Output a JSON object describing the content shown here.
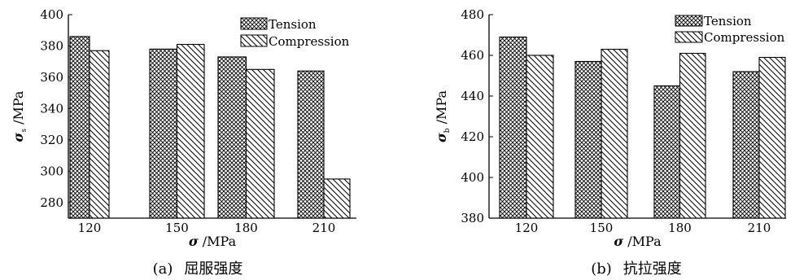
{
  "colors": {
    "axis": "#000000",
    "bar_stroke": "#000000",
    "hatch": "#000000",
    "background": "#ffffff"
  },
  "chart_data": [
    {
      "type": "bar",
      "panel": "a",
      "caption_label": "(a)",
      "caption_text": "屈服强度",
      "ylabel_symbol": "σ",
      "ylabel_sub": "s",
      "ylabel_unit": " /MPa",
      "xlabel_symbol": "σ",
      "xlabel_unit": " /MPa",
      "categories": [
        "120",
        "150",
        "180",
        "210"
      ],
      "ylim": [
        270,
        400
      ],
      "yticks": [
        280,
        300,
        320,
        340,
        360,
        380,
        400
      ],
      "legend_position": "top-right",
      "series": [
        {
          "name": "Tension",
          "pattern": "crosshatch",
          "values": [
            386,
            378,
            373,
            364
          ]
        },
        {
          "name": "Compression",
          "pattern": "diagonal",
          "values": [
            377,
            381,
            365,
            295
          ]
        }
      ]
    },
    {
      "type": "bar",
      "panel": "b",
      "caption_label": "(b)",
      "caption_text": "抗拉强度",
      "ylabel_symbol": "σ",
      "ylabel_sub": "b",
      "ylabel_unit": " /MPa",
      "xlabel_symbol": "σ",
      "xlabel_unit": " /MPa",
      "categories": [
        "120",
        "150",
        "180",
        "210"
      ],
      "ylim": [
        380,
        480
      ],
      "yticks": [
        380,
        400,
        420,
        440,
        460,
        480
      ],
      "legend_position": "top-right",
      "series": [
        {
          "name": "Tension",
          "pattern": "crosshatch",
          "values": [
            469,
            457,
            445,
            452
          ]
        },
        {
          "name": "Compression",
          "pattern": "diagonal",
          "values": [
            460,
            463,
            461,
            459
          ]
        }
      ]
    }
  ]
}
